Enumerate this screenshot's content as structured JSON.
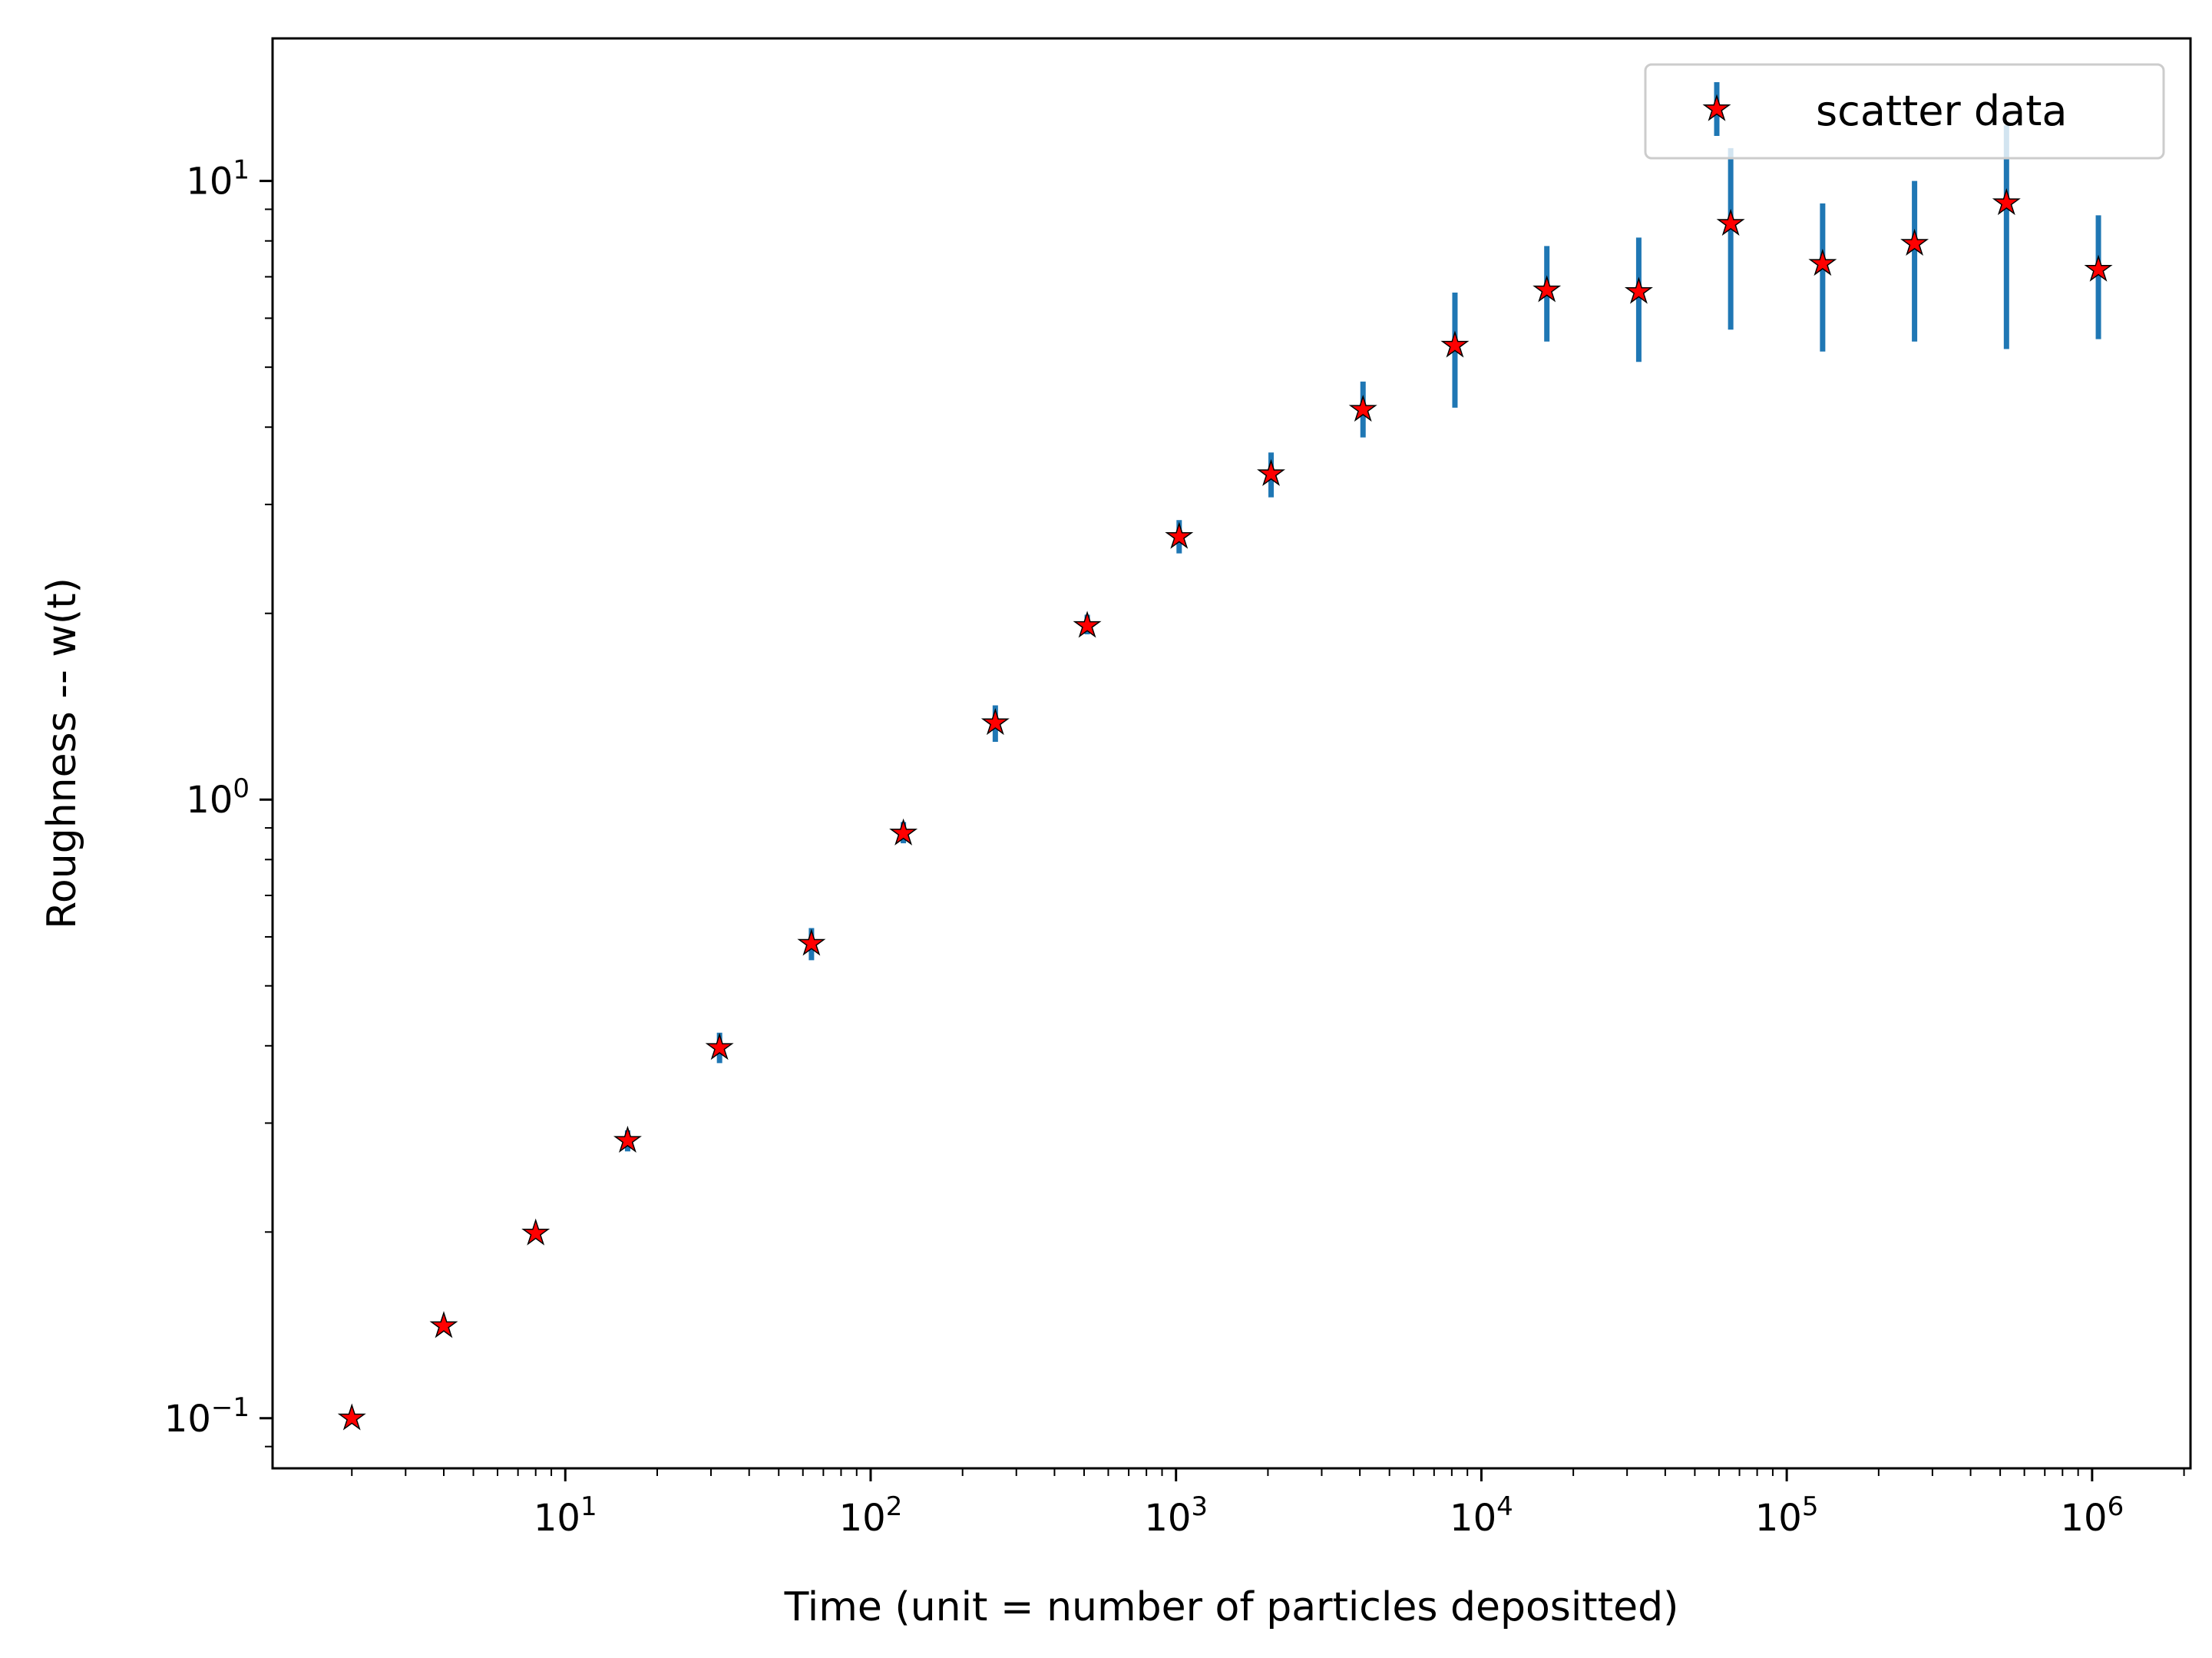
{
  "chart_data": {
    "type": "scatter",
    "xlabel": "Time (unit = number of particles depositted)",
    "ylabel": "Roughness -- w(t)",
    "xscale": "log",
    "yscale": "log",
    "xlim": [
      1.1,
      2100000
    ],
    "ylim": [
      0.083,
      17
    ],
    "grid": false,
    "legend": {
      "position": "top-right",
      "entries": [
        "scatter data"
      ]
    },
    "colors": {
      "marker_fill": "#ff0000",
      "marker_edge": "#000000",
      "errorbar": "#1f77b4"
    },
    "x_ticks": [
      {
        "value": 10,
        "base": "10",
        "exp": "1"
      },
      {
        "value": 100,
        "base": "10",
        "exp": "2"
      },
      {
        "value": 1000,
        "base": "10",
        "exp": "3"
      },
      {
        "value": 10000,
        "base": "10",
        "exp": "4"
      },
      {
        "value": 100000,
        "base": "10",
        "exp": "5"
      },
      {
        "value": 1000000,
        "base": "10",
        "exp": "6"
      }
    ],
    "y_ticks": [
      {
        "value": 0.1,
        "base": "10",
        "exp": "−1"
      },
      {
        "value": 1,
        "base": "10",
        "exp": "0"
      },
      {
        "value": 10,
        "base": "10",
        "exp": "1"
      }
    ],
    "series": [
      {
        "name": "scatter data",
        "marker": "star",
        "x": [
          2,
          4,
          8,
          16,
          32,
          64,
          128,
          256,
          512,
          1024,
          2048,
          4096,
          8192,
          16384,
          32768,
          65536,
          131072,
          262144,
          524288,
          1048576
        ],
        "y": [
          0.1,
          0.141,
          0.199,
          0.281,
          0.397,
          0.585,
          0.882,
          1.33,
          1.91,
          2.66,
          3.36,
          4.27,
          5.42,
          6.66,
          6.62,
          8.53,
          7.35,
          7.92,
          9.21,
          7.19
        ],
        "yerr_low": [
          0.1,
          0.141,
          0.195,
          0.27,
          0.375,
          0.55,
          0.85,
          1.24,
          1.85,
          2.5,
          3.08,
          3.85,
          4.3,
          5.5,
          5.1,
          5.75,
          5.3,
          5.5,
          5.35,
          5.55
        ],
        "yerr_high": [
          0.1,
          0.141,
          0.203,
          0.292,
          0.42,
          0.62,
          0.92,
          1.42,
          1.99,
          2.83,
          3.64,
          4.74,
          6.6,
          7.85,
          8.1,
          11.3,
          9.2,
          10.0,
          12.3,
          8.8
        ]
      }
    ]
  }
}
